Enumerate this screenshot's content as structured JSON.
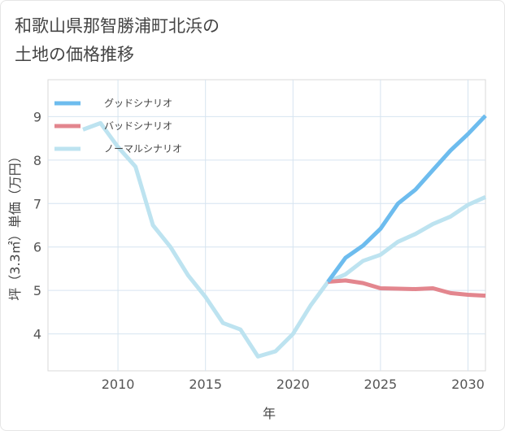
{
  "chart_data": {
    "type": "line",
    "title_lines": [
      "和歌山県那智勝浦町北浜の",
      "土地の価格推移"
    ],
    "xlabel": "年",
    "ylabel": "坪（3.3㎡）単価（万円）",
    "xlim": [
      2006,
      2031
    ],
    "ylim": [
      3.15,
      9.85
    ],
    "xticks": [
      2010,
      2015,
      2020,
      2025,
      2030
    ],
    "yticks": [
      4,
      5,
      6,
      7,
      8,
      9
    ],
    "grid": true,
    "legend_position": "top-left",
    "series": [
      {
        "name": "グッドシナリオ",
        "color": "#6dbcee",
        "x": [
          2022,
          2023,
          2024,
          2025,
          2026,
          2027,
          2028,
          2029,
          2030,
          2031
        ],
        "y": [
          5.2,
          5.75,
          6.03,
          6.42,
          7.0,
          7.32,
          7.77,
          8.22,
          8.6,
          9.02
        ]
      },
      {
        "name": "バッドシナリオ",
        "color": "#e3868e",
        "x": [
          2022,
          2023,
          2024,
          2025,
          2026,
          2027,
          2028,
          2029,
          2030,
          2031
        ],
        "y": [
          5.2,
          5.23,
          5.17,
          5.05,
          5.04,
          5.03,
          5.05,
          4.94,
          4.9,
          4.88
        ]
      },
      {
        "name": "ノーマルシナリオ",
        "color": "#bde3f0",
        "x": [
          2008,
          2009,
          2010,
          2011,
          2012,
          2013,
          2014,
          2015,
          2016,
          2017,
          2018,
          2019,
          2020,
          2021,
          2022,
          2023,
          2024,
          2025,
          2026,
          2027,
          2028,
          2029,
          2030,
          2031
        ],
        "y": [
          8.7,
          8.85,
          8.3,
          7.85,
          6.5,
          6.0,
          5.35,
          4.85,
          4.25,
          4.1,
          3.48,
          3.6,
          4.0,
          4.65,
          5.2,
          5.37,
          5.68,
          5.82,
          6.12,
          6.3,
          6.53,
          6.7,
          6.97,
          7.15
        ]
      }
    ]
  }
}
